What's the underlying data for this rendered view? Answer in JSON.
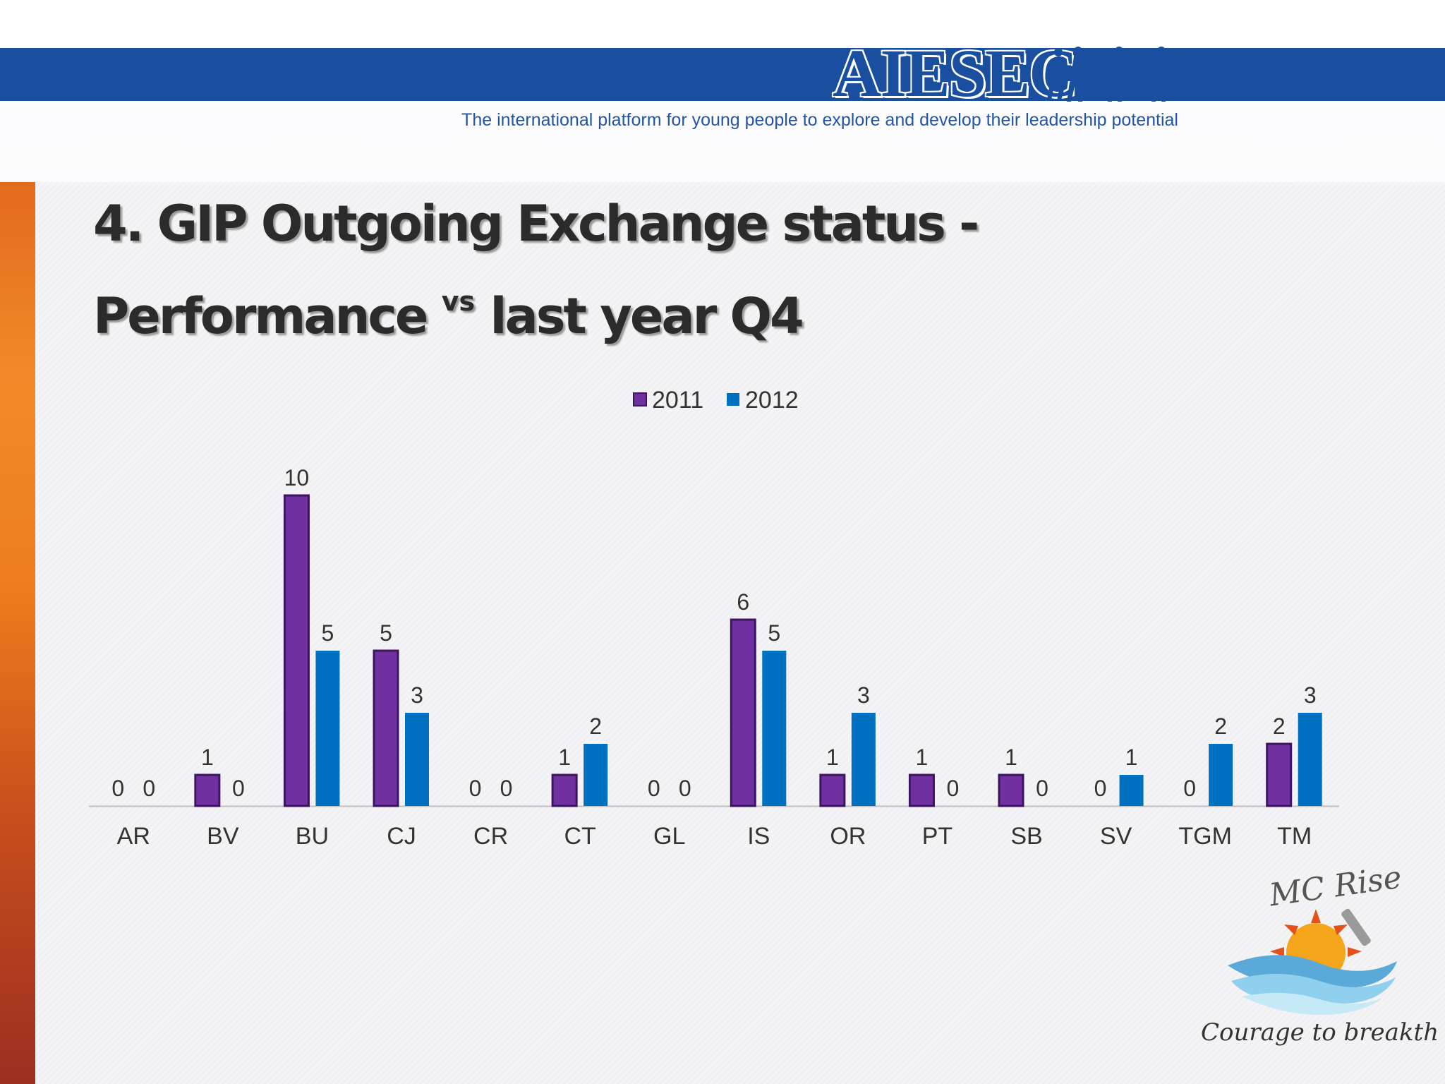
{
  "header": {
    "logo_text": "AIESEC",
    "tagline": "The international platform for young people to explore and develop their leadership potential",
    "band_color": "#1a4fa0"
  },
  "slide": {
    "title_line1": "4. GIP Outgoing Exchange status -",
    "title_line2_a": "Performance",
    "title_line2_vs": "vs",
    "title_line2_b": "last year Q4"
  },
  "chart_data": {
    "type": "bar",
    "categories": [
      "AR",
      "BV",
      "BU",
      "CJ",
      "CR",
      "CT",
      "GL",
      "IS",
      "OR",
      "PT",
      "SB",
      "SV",
      "TGM",
      "TM"
    ],
    "series": [
      {
        "name": "2011",
        "color": "#7030a0",
        "values": [
          0,
          1,
          10,
          5,
          0,
          1,
          0,
          6,
          1,
          1,
          1,
          0,
          0,
          2
        ]
      },
      {
        "name": "2012",
        "color": "#0070c0",
        "values": [
          0,
          0,
          5,
          3,
          0,
          2,
          0,
          5,
          3,
          0,
          0,
          1,
          2,
          3
        ]
      }
    ],
    "legend_position": "top-center",
    "ylim": [
      0,
      10
    ],
    "data_labels": true,
    "grid": false
  },
  "footer_logo": {
    "name": "MC Rise",
    "slogan": "Courage to breakthrough"
  }
}
